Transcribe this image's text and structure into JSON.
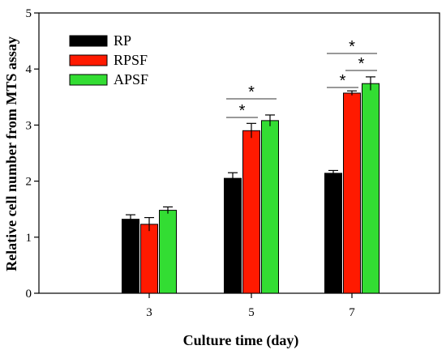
{
  "chart_data": {
    "type": "bar",
    "xlabel": "Culture time (day)",
    "ylabel": "Relative cell number from MTS assay",
    "categories": [
      "3",
      "5",
      "7"
    ],
    "ylim": [
      0,
      5
    ],
    "yticks": [
      "0",
      "1",
      "2",
      "3",
      "4",
      "5"
    ],
    "grid": false,
    "legend_position": "top-left",
    "series": [
      {
        "name": "RP",
        "color": "#000000",
        "values": [
          1.32,
          2.05,
          2.14
        ],
        "errors": [
          0.08,
          0.1,
          0.05
        ]
      },
      {
        "name": "RPSF",
        "color": "#ff1a00",
        "values": [
          1.23,
          2.9,
          3.57
        ],
        "errors": [
          0.12,
          0.13,
          0.04
        ]
      },
      {
        "name": "APSF",
        "color": "#33dd33",
        "values": [
          1.48,
          3.08,
          3.74
        ],
        "errors": [
          0.06,
          0.1,
          0.12
        ]
      }
    ],
    "significance": [
      {
        "category": "5",
        "from": "RP",
        "to": "RPSF",
        "label": "*"
      },
      {
        "category": "5",
        "from": "RP",
        "to": "APSF",
        "label": "*"
      },
      {
        "category": "7",
        "from": "RP",
        "to": "RPSF",
        "label": "*"
      },
      {
        "category": "7",
        "from": "RPSF",
        "to": "APSF",
        "label": "*"
      },
      {
        "category": "7",
        "from": "RP",
        "to": "APSF",
        "label": "*"
      }
    ]
  }
}
